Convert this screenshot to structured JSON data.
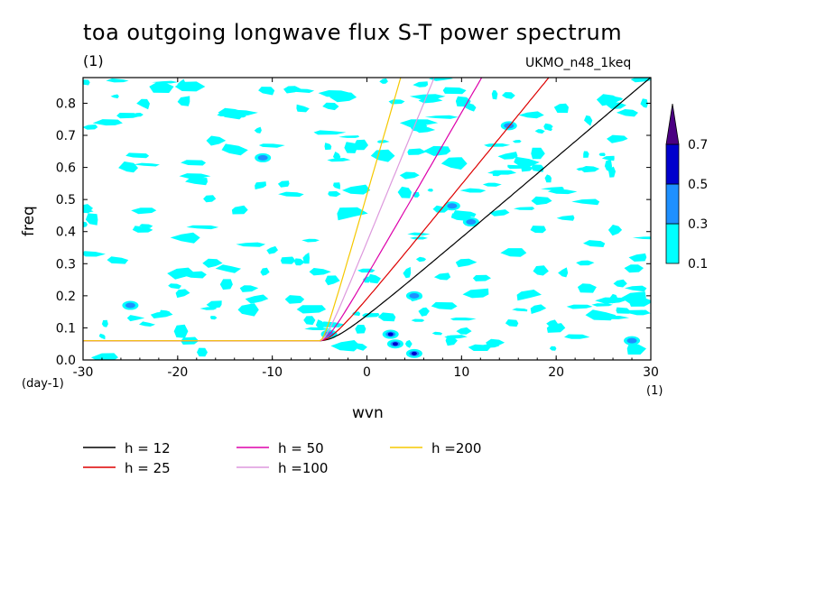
{
  "chart_data": {
    "type": "contour",
    "title": "toa outgoing longwave flux S-T power spectrum",
    "subtitle_left": "(1)",
    "subtitle_right": "UKMO_n48_1keq",
    "xlabel": "wvn",
    "ylabel": "freq",
    "x_unit": "(1)",
    "y_unit": "(day-1)",
    "xlim": [
      -30,
      30
    ],
    "ylim": [
      0,
      0.88
    ],
    "x_ticks": [
      -30,
      -20,
      -10,
      0,
      10,
      20,
      30
    ],
    "x_tick_labels": [
      "-30",
      "-20",
      "-10",
      "0",
      "10",
      "20",
      "30"
    ],
    "y_ticks": [
      0,
      0.1,
      0.2,
      0.3,
      0.4,
      0.5,
      0.6,
      0.7,
      0.8
    ],
    "y_tick_labels": [
      "0.0",
      "0.1",
      "0.2",
      "0.3",
      "0.4",
      "0.5",
      "0.6",
      "0.7",
      "0.8"
    ],
    "contour_levels": [
      0.1,
      0.3,
      0.5,
      0.7
    ],
    "colorbar_labels": [
      "0.1",
      "0.3",
      "0.5",
      "0.7"
    ],
    "colorbar_colors": [
      "#00ffff",
      "#1e90ff",
      "#0000cd",
      "#4b0082"
    ],
    "dispersion_curves": [
      {
        "name": "h = 12",
        "color": "#000000"
      },
      {
        "name": "h = 25",
        "color": "#dd0000"
      },
      {
        "name": "h = 50",
        "color": "#dd00aa"
      },
      {
        "name": "h =100",
        "color": "#dd99dd"
      },
      {
        "name": "h =200",
        "color": "#f5c800"
      }
    ],
    "hotspots": [
      {
        "x": 2.5,
        "y": 0.08,
        "level": 0.5
      },
      {
        "x": 5,
        "y": 0.02,
        "level": 0.5
      },
      {
        "x": 3,
        "y": 0.05,
        "level": 0.5
      },
      {
        "x": -4,
        "y": 0.08,
        "level": 0.3
      },
      {
        "x": -25,
        "y": 0.17,
        "level": 0.3
      },
      {
        "x": 5,
        "y": 0.2,
        "level": 0.3
      },
      {
        "x": 9,
        "y": 0.48,
        "level": 0.3
      },
      {
        "x": 11,
        "y": 0.43,
        "level": 0.3
      },
      {
        "x": 15,
        "y": 0.73,
        "level": 0.3
      },
      {
        "x": -11,
        "y": 0.63,
        "level": 0.3
      },
      {
        "x": 28,
        "y": 0.06,
        "level": 0.3
      }
    ]
  }
}
